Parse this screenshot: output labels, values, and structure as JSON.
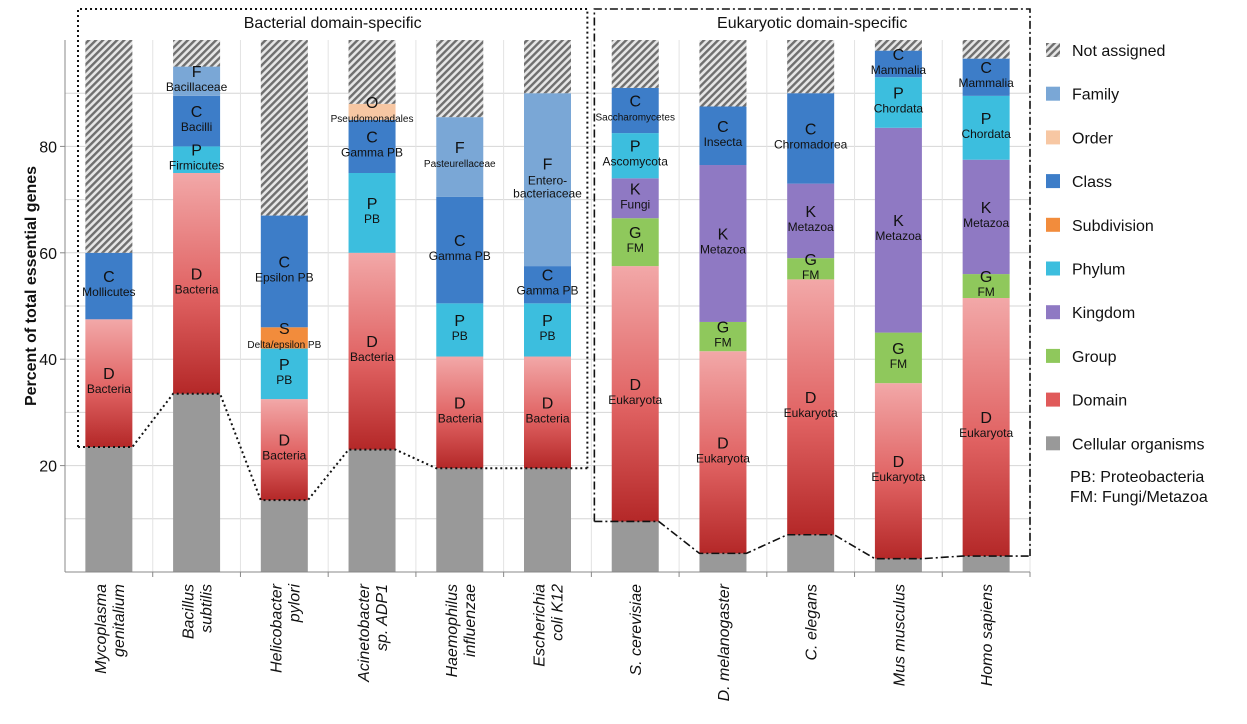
{
  "chart_data": {
    "type": "bar",
    "stacked": true,
    "ylabel": "Percent of total essential genes",
    "ylim": [
      0,
      100
    ],
    "yticks": [
      20,
      40,
      60,
      80
    ],
    "grid": true,
    "legend_position": "right",
    "group_labels": [
      "Bacterial domain-specific",
      "Eukaryotic domain-specific"
    ],
    "levels": [
      {
        "key": "cell",
        "name": "Cellular organisms",
        "color": "#999999"
      },
      {
        "key": "domain",
        "name": "Domain",
        "color": "#e05a5a"
      },
      {
        "key": "group",
        "name": "Group",
        "color": "#8fc85c"
      },
      {
        "key": "kingdom",
        "name": "Kingdom",
        "color": "#8f79c3"
      },
      {
        "key": "phylum",
        "name": "Phylum",
        "color": "#3cbede"
      },
      {
        "key": "subdivision",
        "name": "Subdivision",
        "color": "#f28c3c"
      },
      {
        "key": "class",
        "name": "Class",
        "color": "#3d7dc8"
      },
      {
        "key": "order",
        "name": "Order",
        "color": "#f7c7a3"
      },
      {
        "key": "family",
        "name": "Family",
        "color": "#7aa7d6"
      },
      {
        "key": "na",
        "name": "Not assigned",
        "color": "#9a9a9a"
      }
    ],
    "legend_order": [
      "Not assigned",
      "Family",
      "Order",
      "Class",
      "Subdivision",
      "Phylum",
      "Kingdom",
      "Group",
      "Domain",
      "Cellular organisms"
    ],
    "footnotes": [
      "PB: Proteobacteria",
      "FM: Fungi/Metazoa"
    ],
    "organisms": [
      {
        "name": "Mycoplasma genitalium",
        "x_lines": [
          "Mycoplasma",
          "genitalium"
        ],
        "segments": [
          {
            "level": "cell",
            "value": 23.5
          },
          {
            "level": "domain",
            "value": 24,
            "letter": "D",
            "label": "Bacteria"
          },
          {
            "level": "class",
            "value": 12.5,
            "letter": "C",
            "label": "Mollicutes"
          },
          {
            "level": "na",
            "value": 40
          }
        ]
      },
      {
        "name": "Bacillus subtilis",
        "x_lines": [
          "Bacillus",
          "subtilis"
        ],
        "segments": [
          {
            "level": "cell",
            "value": 33.5
          },
          {
            "level": "domain",
            "value": 41.5,
            "letter": "D",
            "label": "Bacteria"
          },
          {
            "level": "phylum",
            "value": 5,
            "letter": "P",
            "label": "Firmicutes"
          },
          {
            "level": "class",
            "value": 9.5,
            "letter": "C",
            "label": "Bacilli"
          },
          {
            "level": "family",
            "value": 5.5,
            "letter": "F",
            "label": "Bacillaceae"
          },
          {
            "level": "na",
            "value": 5
          }
        ]
      },
      {
        "name": "Helicobacter pylori",
        "x_lines": [
          "Helicobacter",
          "pylori"
        ],
        "segments": [
          {
            "level": "cell",
            "value": 13.5
          },
          {
            "level": "domain",
            "value": 19,
            "letter": "D",
            "label": "Bacteria"
          },
          {
            "level": "phylum",
            "value": 9.5,
            "letter": "P",
            "label": "PB"
          },
          {
            "level": "subdivision",
            "value": 4,
            "letter": "S",
            "label": "Delta/epsilon PB"
          },
          {
            "level": "class",
            "value": 21,
            "letter": "C",
            "label": "Epsilon PB"
          },
          {
            "level": "na",
            "value": 33
          }
        ]
      },
      {
        "name": "Acinetobacter sp. ADP1",
        "x_lines": [
          "Acinetobacter",
          "sp. ADP1"
        ],
        "segments": [
          {
            "level": "cell",
            "value": 23
          },
          {
            "level": "domain",
            "value": 37,
            "letter": "D",
            "label": "Bacteria"
          },
          {
            "level": "phylum",
            "value": 15,
            "letter": "P",
            "label": "PB"
          },
          {
            "level": "class",
            "value": 10,
            "letter": "C",
            "label": "Gamma PB"
          },
          {
            "level": "order",
            "value": 3,
            "letter": "O",
            "label": "Pseudomonadales"
          },
          {
            "level": "na",
            "value": 12
          }
        ]
      },
      {
        "name": "Haemophilus influenzae",
        "x_lines": [
          "Haemophilus",
          "influenzae"
        ],
        "segments": [
          {
            "level": "cell",
            "value": 19.5
          },
          {
            "level": "domain",
            "value": 21,
            "letter": "D",
            "label": "Bacteria"
          },
          {
            "level": "phylum",
            "value": 10,
            "letter": "P",
            "label": "PB"
          },
          {
            "level": "class",
            "value": 20,
            "letter": "C",
            "label": "Gamma PB"
          },
          {
            "level": "family",
            "value": 15,
            "letter": "F",
            "label": "Pasteurellaceae"
          },
          {
            "level": "na",
            "value": 14.5
          }
        ]
      },
      {
        "name": "Escherichia coli K12",
        "x_lines": [
          "Escherichia",
          "coli K12"
        ],
        "segments": [
          {
            "level": "cell",
            "value": 19.5
          },
          {
            "level": "domain",
            "value": 21,
            "letter": "D",
            "label": "Bacteria"
          },
          {
            "level": "phylum",
            "value": 10,
            "letter": "P",
            "label": "PB"
          },
          {
            "level": "class",
            "value": 7,
            "letter": "C",
            "label": "Gamma PB"
          },
          {
            "level": "family",
            "value": 32.5,
            "letter": "F",
            "label": "Entero-",
            "label2": "bacteriaceae"
          },
          {
            "level": "na",
            "value": 10
          }
        ]
      },
      {
        "name": "S. cerevisiae",
        "x_lines": [
          "S. cerevisiae"
        ],
        "segments": [
          {
            "level": "cell",
            "value": 9.5
          },
          {
            "level": "domain",
            "value": 48,
            "letter": "D",
            "label": "Eukaryota"
          },
          {
            "level": "group",
            "value": 9,
            "letter": "G",
            "label": "FM"
          },
          {
            "level": "kingdom",
            "value": 7.5,
            "letter": "K",
            "label": "Fungi"
          },
          {
            "level": "phylum",
            "value": 8.5,
            "letter": "P",
            "label": "Ascomycota"
          },
          {
            "level": "class",
            "value": 8.5,
            "letter": "C",
            "label": "Saccharomycetes"
          },
          {
            "level": "na",
            "value": 9
          }
        ]
      },
      {
        "name": "D. melanogaster",
        "x_lines": [
          "D. melanogaster"
        ],
        "segments": [
          {
            "level": "cell",
            "value": 3.5
          },
          {
            "level": "domain",
            "value": 38,
            "letter": "D",
            "label": "Eukaryota"
          },
          {
            "level": "group",
            "value": 5.5,
            "letter": "G",
            "label": "FM"
          },
          {
            "level": "kingdom",
            "value": 29.5,
            "letter": "K",
            "label": "Metazoa"
          },
          {
            "level": "class",
            "value": 11,
            "letter": "C",
            "label": "Insecta"
          },
          {
            "level": "na",
            "value": 12.5
          }
        ]
      },
      {
        "name": "C. elegans",
        "x_lines": [
          "C. elegans"
        ],
        "segments": [
          {
            "level": "cell",
            "value": 7
          },
          {
            "level": "domain",
            "value": 48,
            "letter": "D",
            "label": "Eukaryota"
          },
          {
            "level": "group",
            "value": 4,
            "letter": "G",
            "label": "FM"
          },
          {
            "level": "kingdom",
            "value": 14,
            "letter": "K",
            "label": "Metazoa"
          },
          {
            "level": "class",
            "value": 17,
            "letter": "C",
            "label": "Chromadorea"
          },
          {
            "level": "na",
            "value": 10
          }
        ]
      },
      {
        "name": "Mus musculus",
        "x_lines": [
          "Mus musculus"
        ],
        "segments": [
          {
            "level": "cell",
            "value": 2.5
          },
          {
            "level": "domain",
            "value": 33,
            "letter": "D",
            "label": "Eukaryota"
          },
          {
            "level": "group",
            "value": 9.5,
            "letter": "G",
            "label": "FM"
          },
          {
            "level": "kingdom",
            "value": 38.5,
            "letter": "K",
            "label": "Metazoa"
          },
          {
            "level": "phylum",
            "value": 9.5,
            "letter": "P",
            "label": "Chordata"
          },
          {
            "level": "class",
            "value": 5,
            "letter": "C",
            "label": "Mammalia"
          },
          {
            "level": "na",
            "value": 2
          }
        ]
      },
      {
        "name": "Homo sapiens",
        "x_lines": [
          "Homo sapiens"
        ],
        "segments": [
          {
            "level": "cell",
            "value": 3
          },
          {
            "level": "domain",
            "value": 48.5,
            "letter": "D",
            "label": "Eukaryota"
          },
          {
            "level": "group",
            "value": 4.5,
            "letter": "G",
            "label": "FM"
          },
          {
            "level": "kingdom",
            "value": 21.5,
            "letter": "K",
            "label": "Metazoa"
          },
          {
            "level": "phylum",
            "value": 12,
            "letter": "P",
            "label": "Chordata"
          },
          {
            "level": "class",
            "value": 7,
            "letter": "C",
            "label": "Mammalia"
          },
          {
            "level": "na",
            "value": 3.5
          }
        ]
      }
    ]
  }
}
